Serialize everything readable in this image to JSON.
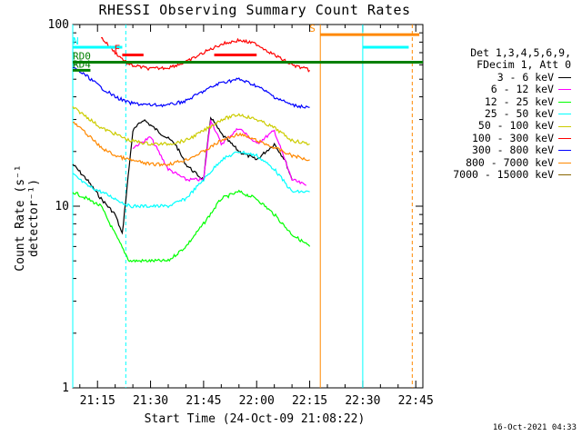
{
  "chart_data": {
    "type": "line",
    "title": "RHESSI Observing Summary Count Rates",
    "xlabel": "Start Time (24-Oct-09 21:08:22)",
    "ylabel": "Count Rate (s⁻¹ detector⁻¹)",
    "y_scale": "log",
    "ylim": [
      1,
      100
    ],
    "xlim": [
      "21:08",
      "22:47"
    ],
    "x_ticks": [
      "21:15",
      "21:30",
      "21:45",
      "22:00",
      "22:15",
      "22:30",
      "22:45"
    ],
    "y_ticks": [
      "1",
      "10",
      "100"
    ],
    "legend_header": [
      "Det 1,3,4,5,6,9,",
      "FDecim 1, Att 0"
    ],
    "legend_position": "right",
    "series": [
      {
        "name": "3 - 6 keV",
        "color": "#000000",
        "x": [
          "21:08",
          "21:12",
          "21:16",
          "21:20",
          "21:22",
          "21:25",
          "21:28",
          "21:32",
          "21:37",
          "21:40",
          "21:43",
          "21:45",
          "21:47",
          "21:50",
          "21:55",
          "22:00",
          "22:05",
          "22:08",
          "22:10"
        ],
        "y": [
          17,
          14,
          11,
          9,
          7,
          26,
          30,
          26,
          22,
          17,
          15,
          14,
          31,
          25,
          20,
          18,
          22,
          18,
          14
        ]
      },
      {
        "name": "6 - 12 keV",
        "color": "#ff00ff",
        "x": [
          "21:25",
          "21:30",
          "21:35",
          "21:40",
          "21:45",
          "21:47",
          "21:50",
          "21:55",
          "22:00",
          "22:05",
          "22:10",
          "22:14"
        ],
        "y": [
          21,
          24,
          16,
          14,
          14,
          30,
          22,
          27,
          22,
          26,
          14,
          13
        ]
      },
      {
        "name": "12 - 25 keV",
        "color": "#00ff00",
        "x": [
          "21:08",
          "21:12",
          "21:16",
          "21:20",
          "21:24",
          "21:30",
          "21:35",
          "21:40",
          "21:45",
          "21:50",
          "21:55",
          "22:00",
          "22:05",
          "22:10",
          "22:15"
        ],
        "y": [
          12,
          11,
          10,
          7,
          5,
          5,
          5,
          6,
          8,
          11,
          12,
          11,
          9,
          7,
          6
        ]
      },
      {
        "name": "25 - 50 keV",
        "color": "#00ffff",
        "x": [
          "21:08",
          "21:12",
          "21:16",
          "21:20",
          "21:24",
          "21:30",
          "21:35",
          "21:40",
          "21:45",
          "21:50",
          "21:55",
          "22:00",
          "22:05",
          "22:10",
          "22:15"
        ],
        "y": [
          15,
          13,
          12,
          11,
          10,
          10,
          10,
          11,
          14,
          18,
          20,
          19,
          16,
          12,
          12
        ]
      },
      {
        "name": "50 - 100 keV",
        "color": "#cccc00",
        "x": [
          "21:08",
          "21:12",
          "21:16",
          "21:20",
          "21:24",
          "21:30",
          "21:35",
          "21:40",
          "21:45",
          "21:50",
          "21:55",
          "22:00",
          "22:05",
          "22:10",
          "22:15"
        ],
        "y": [
          35,
          31,
          27,
          25,
          23,
          22,
          22,
          23,
          26,
          30,
          32,
          30,
          27,
          23,
          22
        ]
      },
      {
        "name": "100 - 300 keV",
        "color": "#ff0000",
        "x": [
          "21:16",
          "21:20",
          "21:24",
          "21:30",
          "21:35",
          "21:40",
          "21:45",
          "21:50",
          "21:55",
          "22:00",
          "22:05",
          "22:10",
          "22:15"
        ],
        "y": [
          85,
          70,
          60,
          57,
          58,
          62,
          70,
          78,
          82,
          78,
          68,
          60,
          56
        ]
      },
      {
        "name": "300 - 800 keV",
        "color": "#0000ff",
        "x": [
          "21:08",
          "21:12",
          "21:16",
          "21:20",
          "21:24",
          "21:30",
          "21:35",
          "21:40",
          "21:45",
          "21:50",
          "21:55",
          "22:00",
          "22:05",
          "22:10",
          "22:15"
        ],
        "y": [
          58,
          52,
          45,
          40,
          37,
          36,
          36,
          38,
          43,
          48,
          50,
          46,
          40,
          36,
          35
        ]
      },
      {
        "name": "800 - 7000 keV",
        "color": "#ff8800",
        "x": [
          "21:08",
          "21:12",
          "21:16",
          "21:20",
          "21:24",
          "21:30",
          "21:35",
          "21:40",
          "21:45",
          "21:50",
          "21:55",
          "22:00",
          "22:05",
          "22:10",
          "22:15"
        ],
        "y": [
          29,
          25,
          21,
          19,
          18,
          17,
          17,
          18,
          20,
          23,
          25,
          23,
          21,
          19,
          18
        ]
      },
      {
        "name": "7000 - 15000 keV",
        "color": "#886600",
        "x": [],
        "y": []
      }
    ],
    "flags": [
      {
        "label": "N",
        "color": "#00ffff",
        "y": 75,
        "segments": [
          [
            "21:08",
            "21:22"
          ],
          [
            "22:30",
            "22:43"
          ]
        ]
      },
      {
        "label": "F",
        "color": "#ff0000",
        "y": 68,
        "segments": [
          [
            "21:22",
            "21:28"
          ],
          [
            "21:48",
            "22:00"
          ]
        ]
      },
      {
        "label": "RD0",
        "color": "#008000",
        "y": 62,
        "segments": [
          [
            "21:08",
            "22:47"
          ]
        ]
      },
      {
        "label": "RD4",
        "color": "#008000",
        "y": 56,
        "segments": [
          [
            "21:08",
            "21:13"
          ]
        ]
      },
      {
        "label": "S",
        "color": "#ff8800",
        "y": 88,
        "segments": [
          [
            "22:18",
            "22:46"
          ]
        ]
      }
    ],
    "vertical_markers": [
      {
        "x": "21:08",
        "color": "#00ffff",
        "style": "solid"
      },
      {
        "x": "21:23",
        "color": "#00ffff",
        "style": "dashed"
      },
      {
        "x": "22:18",
        "color": "#ff8800",
        "style": "solid"
      },
      {
        "x": "22:30",
        "color": "#00ffff",
        "style": "solid"
      },
      {
        "x": "22:44",
        "color": "#ff8800",
        "style": "dashed"
      }
    ],
    "grid": false
  },
  "footer": {
    "stamp": "16-Oct-2021 04:33"
  }
}
